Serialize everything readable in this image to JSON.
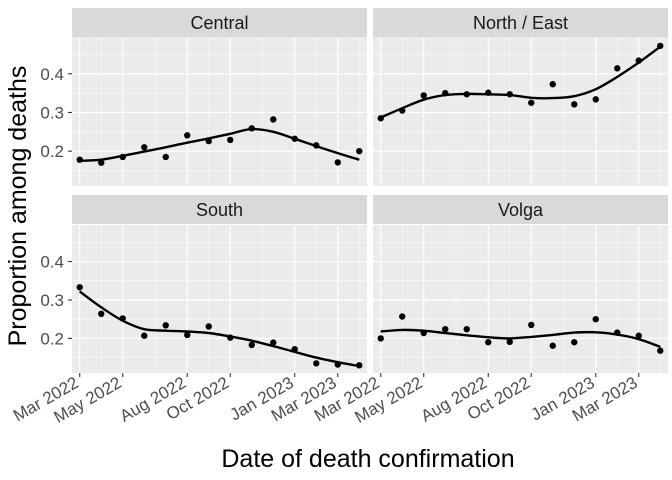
{
  "chart_data": {
    "type": "scatter",
    "xlabel": "Date of death confirmation",
    "ylabel": "Proportion among deaths",
    "x_ticks": [
      "Mar 2022",
      "May 2022",
      "Aug 2022",
      "Oct 2022",
      "Jan 2023",
      "Mar 2023"
    ],
    "y_ticks": [
      0.2,
      0.3,
      0.4
    ],
    "ylim": [
      0.11,
      0.495
    ],
    "grid": true,
    "overlay": "smoothed trend line",
    "x": [
      "2022-03",
      "2022-04",
      "2022-05",
      "2022-06",
      "2022-07",
      "2022-08",
      "2022-09",
      "2022-10",
      "2022-11",
      "2022-12",
      "2023-01",
      "2023-02",
      "2023-03",
      "2023-04"
    ],
    "panels": [
      {
        "region": "Central",
        "values": [
          0.178,
          0.17,
          0.185,
          0.21,
          0.185,
          0.241,
          0.226,
          0.229,
          0.259,
          0.282,
          0.232,
          0.215,
          0.171,
          0.2
        ],
        "trend": [
          0.175,
          0.178,
          0.188,
          0.199,
          0.21,
          0.222,
          0.233,
          0.245,
          0.257,
          0.25,
          0.232,
          0.213,
          0.195,
          0.178
        ]
      },
      {
        "region": "North / East",
        "values": [
          0.285,
          0.305,
          0.344,
          0.35,
          0.347,
          0.351,
          0.347,
          0.325,
          0.373,
          0.321,
          0.334,
          0.414,
          0.434,
          0.472
        ],
        "trend": [
          0.287,
          0.311,
          0.333,
          0.345,
          0.348,
          0.347,
          0.345,
          0.338,
          0.337,
          0.342,
          0.36,
          0.392,
          0.429,
          0.47
        ]
      },
      {
        "region": "South",
        "values": [
          0.333,
          0.264,
          0.252,
          0.207,
          0.234,
          0.209,
          0.231,
          0.202,
          0.183,
          0.189,
          0.172,
          0.135,
          0.132,
          0.13
        ],
        "trend": [
          0.322,
          0.281,
          0.246,
          0.224,
          0.22,
          0.218,
          0.214,
          0.205,
          0.194,
          0.18,
          0.165,
          0.15,
          0.138,
          0.128
        ]
      },
      {
        "region": "Volga",
        "values": [
          0.2,
          0.257,
          0.214,
          0.224,
          0.224,
          0.19,
          0.191,
          0.235,
          0.181,
          0.19,
          0.25,
          0.215,
          0.207,
          0.168
        ],
        "trend": [
          0.218,
          0.222,
          0.22,
          0.214,
          0.208,
          0.203,
          0.2,
          0.204,
          0.209,
          0.215,
          0.216,
          0.21,
          0.198,
          0.178
        ]
      }
    ]
  }
}
